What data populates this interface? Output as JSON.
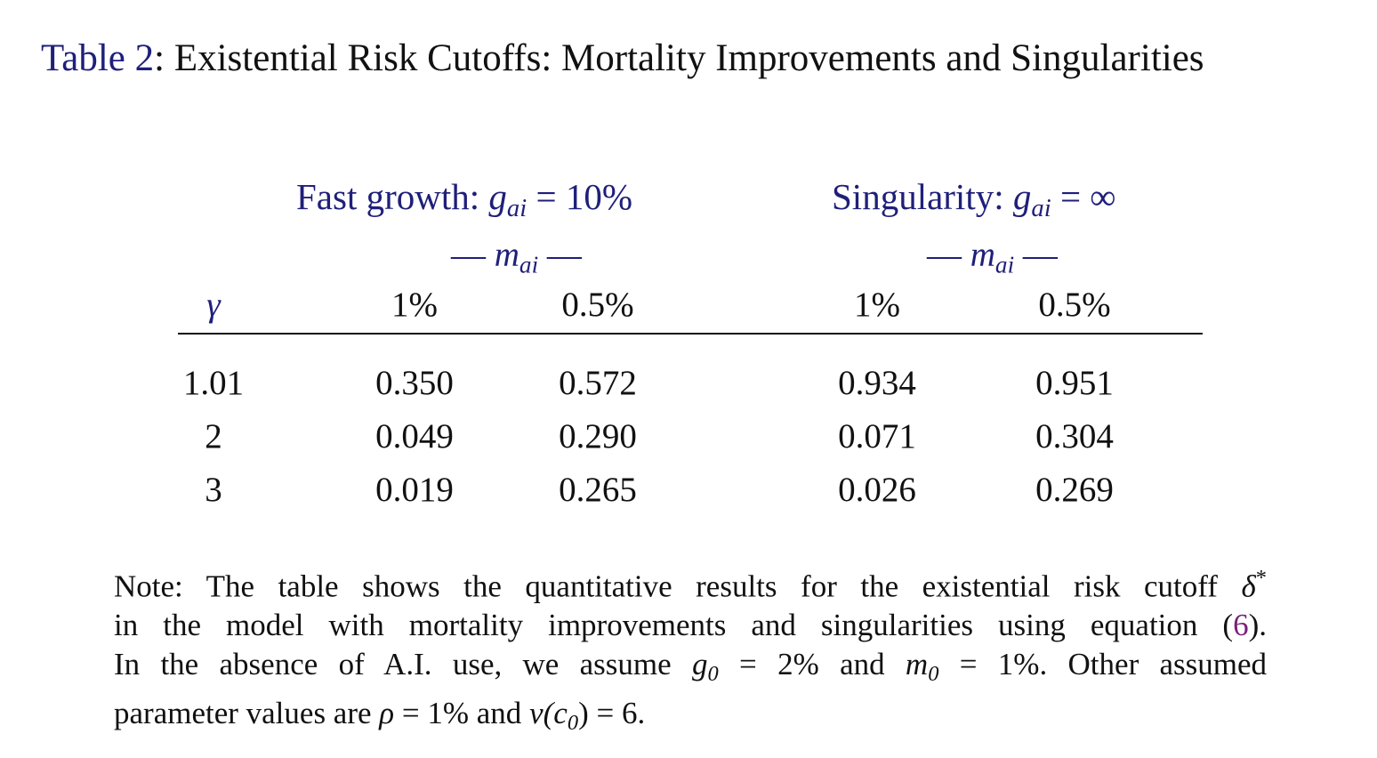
{
  "caption": {
    "label": "Table 2",
    "title": ": Existential Risk Cutoffs: Mortality Improvements and Singularities"
  },
  "groups": [
    {
      "name": "Fast growth:",
      "math_var": "g",
      "math_sub": "ai",
      "math_rhs": "= 10%"
    },
    {
      "name": "Singularity:",
      "math_var": "g",
      "math_sub": "ai",
      "math_rhs": "= ∞"
    }
  ],
  "subheader": {
    "left_dash": "—",
    "var": "m",
    "sub": "ai",
    "right_dash": "—"
  },
  "columns": [
    "γ",
    "1%",
    "0.5%",
    "1%",
    "0.5%"
  ],
  "rows": [
    [
      "1.01",
      "0.350",
      "0.572",
      "0.934",
      "0.951"
    ],
    [
      "2",
      "0.049",
      "0.290",
      "0.071",
      "0.304"
    ],
    [
      "3",
      "0.019",
      "0.265",
      "0.026",
      "0.269"
    ]
  ],
  "note": {
    "line1_text": "Note: The table shows the quantitative results for the existential risk cutoff",
    "line1_sym": "δ",
    "line1_sup": "*",
    "line2_text": "in the model with mortality improvements and singularities using equation (",
    "line2_ref": "6",
    "line2_end": ").",
    "line3_a": "In the absence of A.I. use, we assume",
    "line3_g": "g",
    "line3_g_sub": "0",
    "line3_g_rhs": "= 2%",
    "line3_and": "and",
    "line3_m": "m",
    "line3_m_sub": "0",
    "line3_m_rhs": "= 1%.",
    "line3_b": "Other assumed",
    "line4_a": "parameter values are",
    "line4_rho": "ρ",
    "line4_rho_rhs": "= 1%",
    "line4_and": "and",
    "line4_v": "v",
    "line4_c": "(c",
    "line4_c_sub": "0",
    "line4_v_rhs": ") = 6."
  }
}
